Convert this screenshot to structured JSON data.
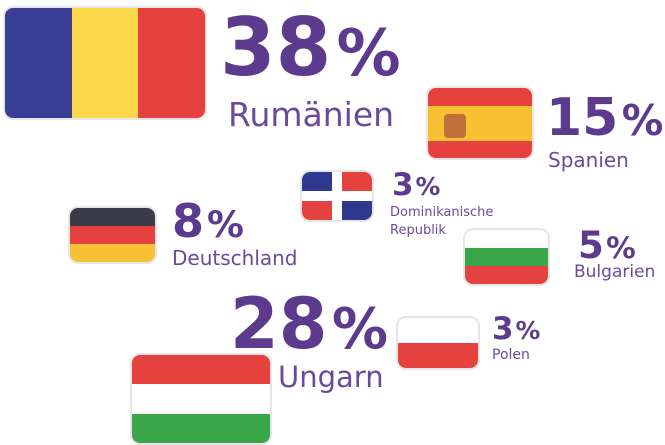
{
  "items": [
    {
      "value": "38",
      "unit": "%",
      "country": "Rumänien"
    },
    {
      "value": "15",
      "unit": "%",
      "country": "Spanien"
    },
    {
      "value": "3",
      "unit": "%",
      "country": "Dominikanische Republik"
    },
    {
      "value": "8",
      "unit": "%",
      "country": "Deutschland"
    },
    {
      "value": "5",
      "unit": "%",
      "country": "Bulgarien"
    },
    {
      "value": "28",
      "unit": "%",
      "country": "Ungarn"
    },
    {
      "value": "3",
      "unit": "%",
      "country": "Polen"
    }
  ]
}
